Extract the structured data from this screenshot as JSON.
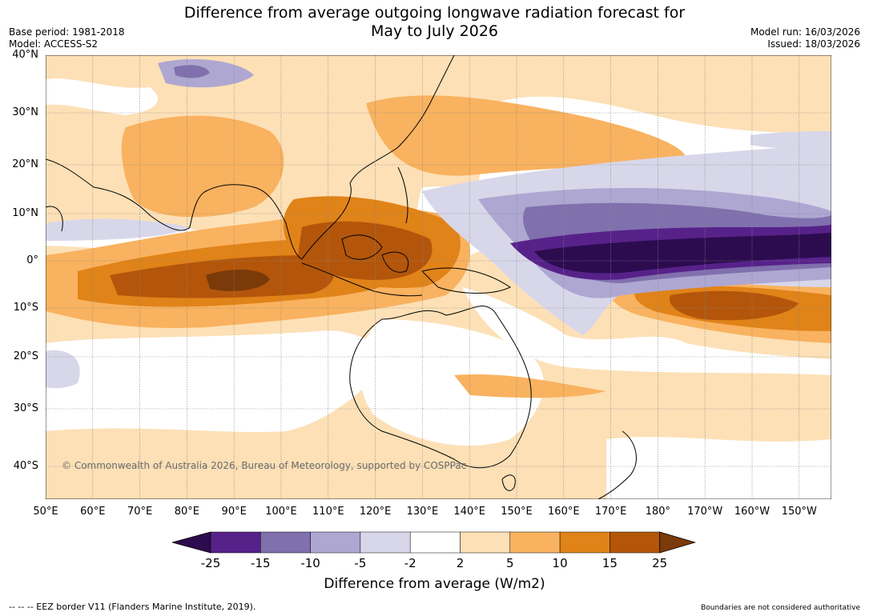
{
  "title_line1": "Difference from average outgoing longwave radiation forecast for",
  "title_line2": "May to July 2026",
  "base_period": "Base period: 1981-2018",
  "model": "Model: ACCESS-S2",
  "model_run": "Model run: 16/03/2026",
  "issued": "Issued: 18/03/2026",
  "copyright": "© Commonwealth of Australia 2026, Bureau of Meteorology, supported by COSPPac",
  "lat_labels": [
    "40°N",
    "30°N",
    "20°N",
    "10°N",
    "0°",
    "10°S",
    "20°S",
    "30°S",
    "40°S"
  ],
  "lon_labels": [
    "50°E",
    "60°E",
    "70°E",
    "80°E",
    "90°E",
    "100°E",
    "110°E",
    "120°E",
    "130°E",
    "140°E",
    "150°E",
    "160°E",
    "170°E",
    "180°",
    "170°W",
    "160°W",
    "150°W"
  ],
  "colorbar": {
    "label": "Difference from average (W/m2)",
    "ticks": [
      "-25",
      "-15",
      "-10",
      "-5",
      "-2",
      "2",
      "5",
      "10",
      "15",
      "25"
    ],
    "colors": [
      "#2c0c4f",
      "#57218a",
      "#8070ad",
      "#aea7d1",
      "#d8d7ea",
      "#ffffff",
      "#fde0b6",
      "#f9b25f",
      "#e08318",
      "#b3560b",
      "#7b3a09"
    ]
  },
  "footer_left": "--  --  -- EEZ border V11 (Flanders Marine Institute, 2019).",
  "footer_right": "Boundaries are not considered authoritative"
}
